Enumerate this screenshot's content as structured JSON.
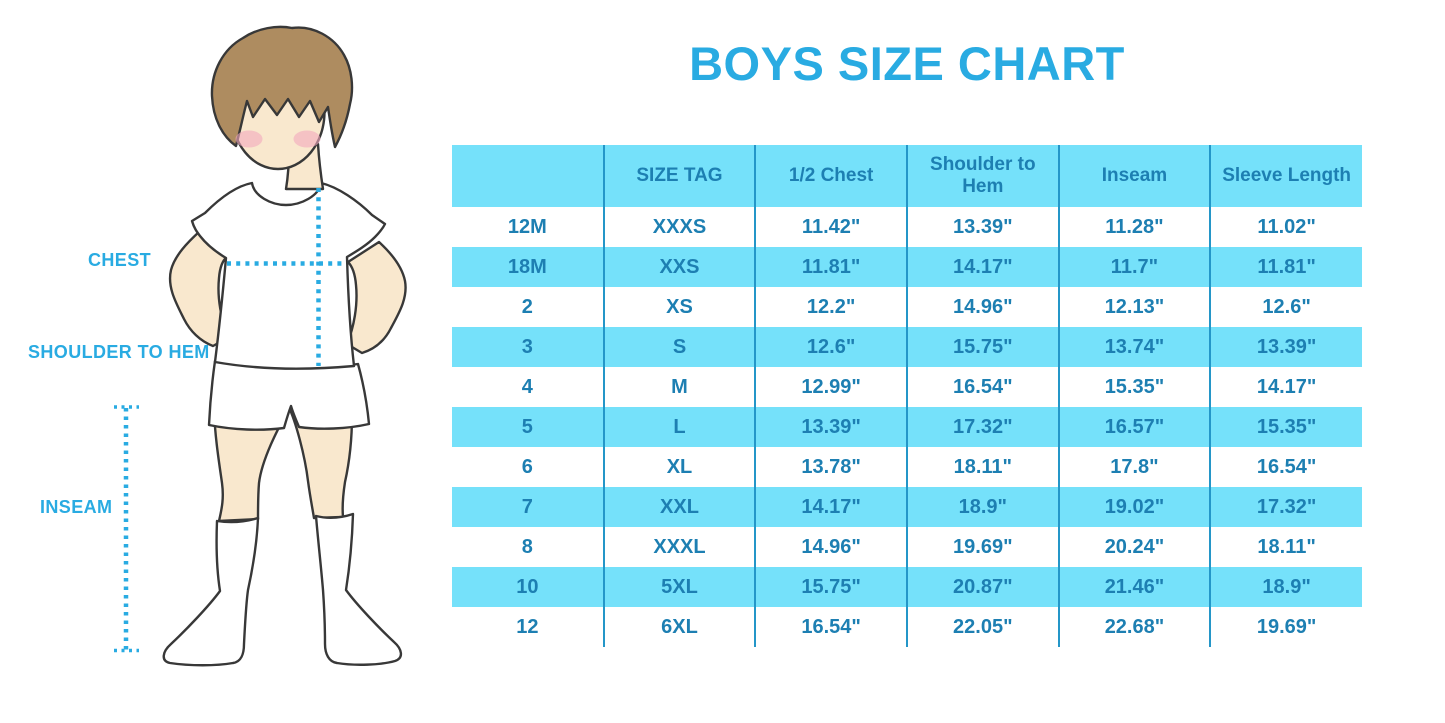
{
  "title": "BOYS SIZE CHART",
  "figure": {
    "labels": {
      "chest": "CHEST",
      "shoulder_to_hem": "SHOULDER TO HEM",
      "inseam": "INSEAM"
    }
  },
  "colors": {
    "accent_blue": "#29ABE2",
    "stripe_cyan": "#75E1FA",
    "table_text": "#1D7FB2",
    "column_divider": "#2496C8"
  },
  "chart_data": {
    "type": "table",
    "title": "BOYS SIZE CHART",
    "headers": [
      "",
      "SIZE TAG",
      "1/2 Chest",
      "Shoulder to Hem",
      "Inseam",
      "Sleeve Length"
    ],
    "rows": [
      [
        "12M",
        "XXXS",
        "11.42\"",
        "13.39\"",
        "11.28\"",
        "11.02\""
      ],
      [
        "18M",
        "XXS",
        "11.81\"",
        "14.17\"",
        "11.7\"",
        "11.81\""
      ],
      [
        "2",
        "XS",
        "12.2\"",
        "14.96\"",
        "12.13\"",
        "12.6\""
      ],
      [
        "3",
        "S",
        "12.6\"",
        "15.75\"",
        "13.74\"",
        "13.39\""
      ],
      [
        "4",
        "M",
        "12.99\"",
        "16.54\"",
        "15.35\"",
        "14.17\""
      ],
      [
        "5",
        "L",
        "13.39\"",
        "17.32\"",
        "16.57\"",
        "15.35\""
      ],
      [
        "6",
        "XL",
        "13.78\"",
        "18.11\"",
        "17.8\"",
        "16.54\""
      ],
      [
        "7",
        "XXL",
        "14.17\"",
        "18.9\"",
        "19.02\"",
        "17.32\""
      ],
      [
        "8",
        "XXXL",
        "14.96\"",
        "19.69\"",
        "20.24\"",
        "18.11\""
      ],
      [
        "10",
        "5XL",
        "15.75\"",
        "20.87\"",
        "21.46\"",
        "18.9\""
      ],
      [
        "12",
        "6XL",
        "16.54\"",
        "22.05\"",
        "22.68\"",
        "19.69\""
      ]
    ],
    "layout": {
      "striped": true,
      "stripe_rule": "header row and every second data row are cyan",
      "units": "inches",
      "legend_position": "none",
      "grid": "vertical column dividers only"
    }
  }
}
